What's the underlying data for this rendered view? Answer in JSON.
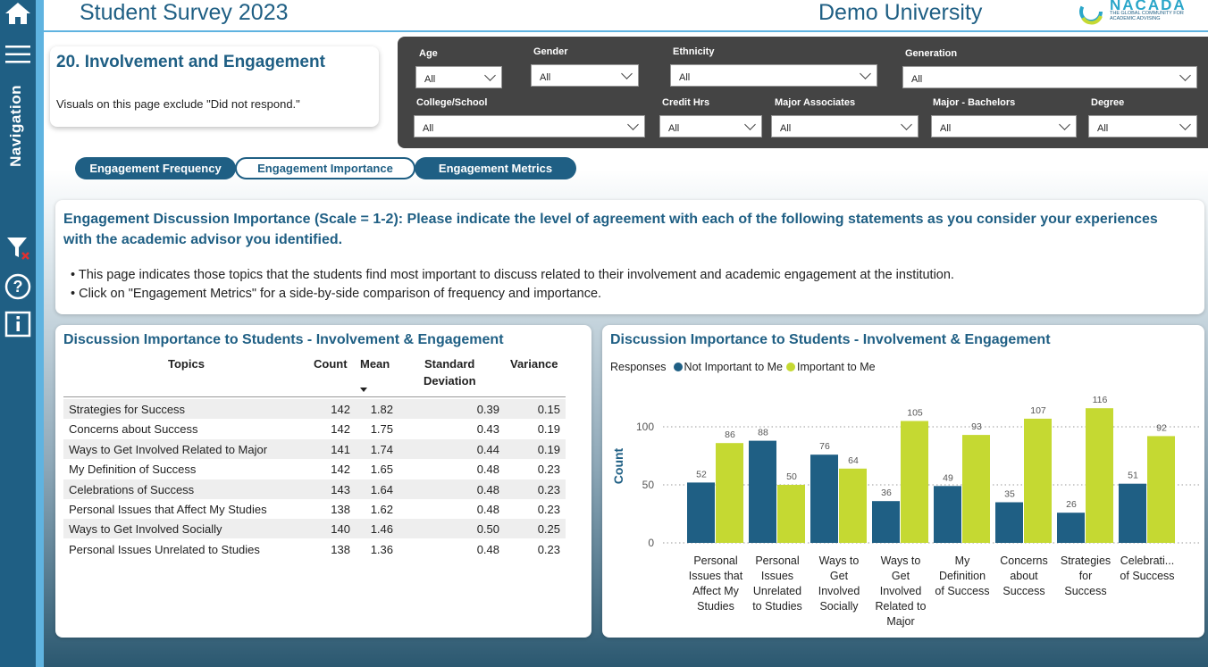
{
  "header": {
    "title": "Student Survey 2023",
    "university": "Demo University",
    "logo_name": "NACADA",
    "logo_tagline": "THE GLOBAL COMMUNITY FOR ACADEMIC ADVISING"
  },
  "nav": {
    "label": "Navigation"
  },
  "page": {
    "title": "20. Involvement and Engagement",
    "note": "Visuals on this page exclude \"Did not respond.\""
  },
  "filters": {
    "age": {
      "label": "Age",
      "value": "All"
    },
    "gender": {
      "label": "Gender",
      "value": "All"
    },
    "ethnicity": {
      "label": "Ethnicity",
      "value": "All"
    },
    "generation": {
      "label": "Generation",
      "value": "All"
    },
    "college": {
      "label": "College/School",
      "value": "All"
    },
    "credit": {
      "label": "Credit Hrs",
      "value": "All"
    },
    "major_assoc": {
      "label": "Major Associates",
      "value": "All"
    },
    "major_bach": {
      "label": "Major - Bachelors",
      "value": "All"
    },
    "degree": {
      "label": "Degree",
      "value": "All"
    }
  },
  "tabs": [
    {
      "label": "Engagement Frequency"
    },
    {
      "label": "Engagement Importance"
    },
    {
      "label": "Engagement Metrics"
    }
  ],
  "description": {
    "heading": "Engagement Discussion Importance (Scale = 1-2): Please indicate the level of agreement with each of the following statements as you consider your experiences with the academic advisor you identified.",
    "bullet1": "• This page indicates those topics that the students find most important to discuss related to their involvement and academic engagement at the institution.",
    "bullet2": "• Click on \"Engagement Metrics\" for a side-by-side comparison of frequency and importance."
  },
  "table": {
    "title": "Discussion Importance to Students - Involvement & Engagement",
    "headers": {
      "topics": "Topics",
      "count": "Count",
      "mean": "Mean",
      "sd1": "Standard",
      "sd2": "Deviation",
      "variance": "Variance"
    },
    "rows": [
      {
        "topic": "Strategies for Success",
        "count": "142",
        "mean": "1.82",
        "sd": "0.39",
        "var": "0.15"
      },
      {
        "topic": "Concerns about Success",
        "count": "142",
        "mean": "1.75",
        "sd": "0.43",
        "var": "0.19"
      },
      {
        "topic": "Ways to Get Involved Related to Major",
        "count": "141",
        "mean": "1.74",
        "sd": "0.44",
        "var": "0.19"
      },
      {
        "topic": "My Definition of Success",
        "count": "142",
        "mean": "1.65",
        "sd": "0.48",
        "var": "0.23"
      },
      {
        "topic": "Celebrations of Success",
        "count": "143",
        "mean": "1.64",
        "sd": "0.48",
        "var": "0.23"
      },
      {
        "topic": "Personal Issues that Affect My Studies",
        "count": "138",
        "mean": "1.62",
        "sd": "0.48",
        "var": "0.23"
      },
      {
        "topic": "Ways to Get Involved Socially",
        "count": "140",
        "mean": "1.46",
        "sd": "0.50",
        "var": "0.25"
      },
      {
        "topic": "Personal Issues Unrelated to Studies",
        "count": "138",
        "mean": "1.36",
        "sd": "0.48",
        "var": "0.23"
      }
    ]
  },
  "chart_data": {
    "type": "bar",
    "title": "Discussion Importance to Students - Involvement & Engagement",
    "legend_title": "Responses",
    "legend_position": "top-left",
    "ylabel": "Count",
    "xlabel": "",
    "ylim": [
      0,
      120
    ],
    "yticks": [
      0,
      50,
      100
    ],
    "grid": "dotted",
    "categories": [
      [
        "Personal",
        "Issues that",
        "Affect My",
        "Studies"
      ],
      [
        "Personal",
        "Issues",
        "Unrelated",
        "to Studies"
      ],
      [
        "Ways to",
        "Get",
        "Involved",
        "Socially"
      ],
      [
        "Ways to",
        "Get",
        "Involved",
        "Related to",
        "Major"
      ],
      [
        "My",
        "Definition",
        "of Success"
      ],
      [
        "Concerns",
        "about",
        "Success"
      ],
      [
        "Strategies",
        "for",
        "Success"
      ],
      [
        "Celebrati...",
        "of Success"
      ]
    ],
    "series": [
      {
        "name": "Not Important to Me",
        "color": "#1f5f84",
        "values": [
          52,
          88,
          76,
          36,
          49,
          35,
          26,
          51
        ]
      },
      {
        "name": "Important to Me",
        "color": "#c5d932",
        "values": [
          86,
          50,
          64,
          105,
          93,
          107,
          116,
          92
        ]
      }
    ]
  }
}
